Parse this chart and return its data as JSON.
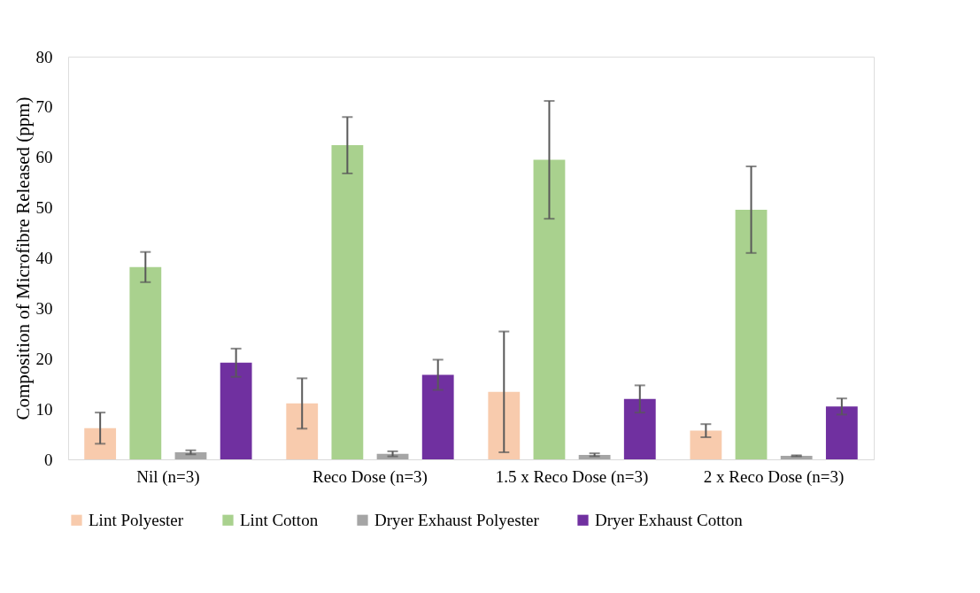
{
  "chart_data": {
    "type": "bar",
    "ylabel": "Composition of Microfibre Released (ppm)",
    "categories": [
      "Nil (n=3)",
      "Reco Dose (n=3)",
      "1.5 x Reco Dose (n=3)",
      "2 x Reco Dose (n=3)"
    ],
    "series": [
      {
        "name": "Lint Polyester",
        "color": "#f8cbad",
        "values": [
          6.2,
          11.1,
          13.4,
          5.7
        ],
        "errors": [
          3.1,
          5,
          12,
          1.3
        ]
      },
      {
        "name": "Lint Cotton",
        "color": "#a9d18e",
        "values": [
          38.2,
          62.4,
          59.5,
          49.6
        ],
        "errors": [
          3,
          5.6,
          11.7,
          8.6
        ]
      },
      {
        "name": "Dryer Exhaust Polyester",
        "color": "#a5a5a5",
        "values": [
          1.4,
          1.1,
          0.9,
          0.7
        ],
        "errors": [
          0.4,
          0.5,
          0.3,
          0.1
        ]
      },
      {
        "name": "Dryer Exhaust Cotton",
        "color": "#7030a0",
        "values": [
          19.2,
          16.8,
          12,
          10.5
        ],
        "errors": [
          2.8,
          3,
          2.7,
          1.6
        ]
      }
    ],
    "ylim": [
      0,
      80
    ],
    "yticks": [
      0,
      10,
      20,
      30,
      40,
      50,
      60,
      70,
      80
    ],
    "grid": false,
    "legend": "bottom"
  }
}
